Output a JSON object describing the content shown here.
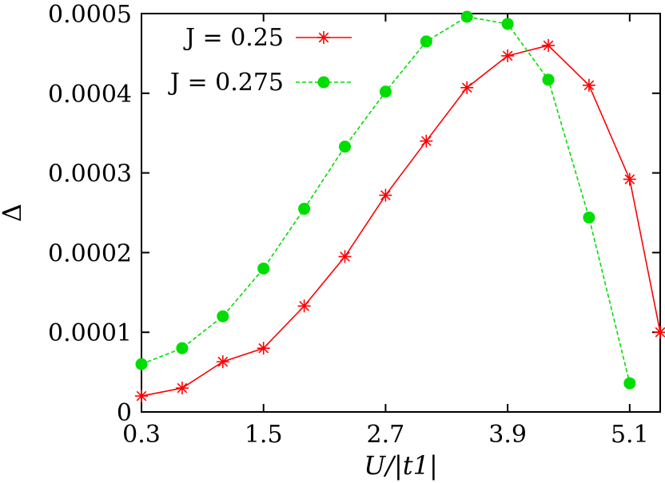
{
  "chart_data": {
    "type": "line",
    "xlabel": "U/|t1|",
    "ylabel": "Δ",
    "xlim": [
      0.3,
      5.4
    ],
    "ylim": [
      0,
      0.0005
    ],
    "x_ticks": [
      "0.3",
      "1.5",
      "2.7",
      "3.9",
      "5.1"
    ],
    "y_ticks": [
      "0",
      "0.0001",
      "0.0002",
      "0.0003",
      "0.0004",
      "0.0005"
    ],
    "grid": false,
    "legend_position": "top-left",
    "series": [
      {
        "name": "J = 0.25",
        "color": "#ff0000",
        "marker": "asterisk",
        "dash": "solid",
        "x": [
          0.3,
          0.7,
          1.1,
          1.5,
          1.9,
          2.3,
          2.7,
          3.1,
          3.5,
          3.9,
          4.3,
          4.7,
          5.1,
          5.4
        ],
        "y": [
          2e-05,
          3e-05,
          6.3e-05,
          8e-05,
          0.000133,
          0.000195,
          0.000272,
          0.00034,
          0.000407,
          0.000447,
          0.00046,
          0.00041,
          0.000292,
          0.0001
        ]
      },
      {
        "name": "J = 0.275",
        "color": "#00dd00",
        "marker": "circle",
        "dash": "dashed",
        "x": [
          0.3,
          0.7,
          1.1,
          1.5,
          1.9,
          2.3,
          2.7,
          3.1,
          3.5,
          3.9,
          4.3,
          4.7,
          5.1
        ],
        "y": [
          6e-05,
          8e-05,
          0.00012,
          0.00018,
          0.000255,
          0.000333,
          0.000402,
          0.000465,
          0.000496,
          0.000487,
          0.000417,
          0.000244,
          3.6e-05
        ]
      }
    ]
  }
}
